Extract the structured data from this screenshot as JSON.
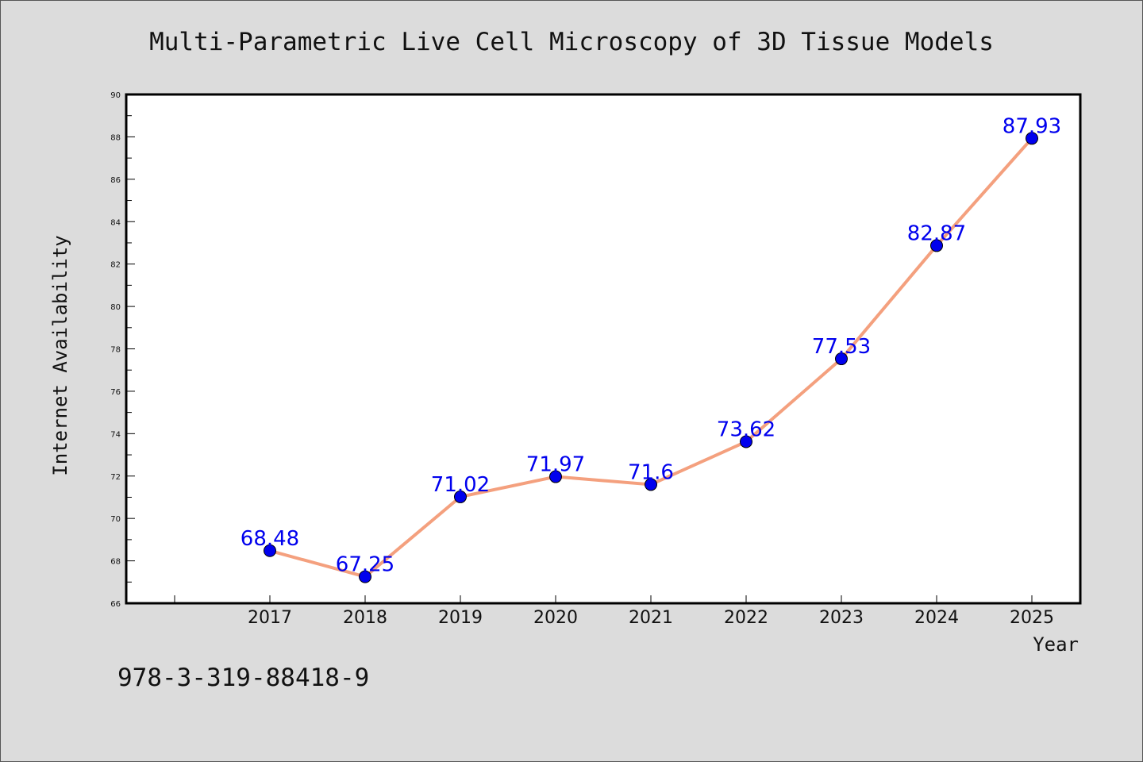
{
  "chart_data": {
    "type": "line",
    "title": "Multi-Parametric Live Cell Microscopy of 3D Tissue Models",
    "xlabel": "Year",
    "ylabel": "Internet Availability",
    "categories": [
      "2017",
      "2018",
      "2019",
      "2020",
      "2021",
      "2022",
      "2023",
      "2024",
      "2025"
    ],
    "series": [
      {
        "values": [
          68.48,
          67.25,
          71.02,
          71.97,
          71.6,
          73.62,
          77.53,
          82.87,
          87.93
        ],
        "labels": [
          "68.48",
          "67.25",
          "71.02",
          "71.97",
          "71.6",
          "73.62",
          "77.53",
          "82.87",
          "87.93"
        ]
      }
    ],
    "ylim": [
      66,
      90
    ],
    "yticks": [
      "66",
      "68",
      "70",
      "72",
      "74",
      "76",
      "78",
      "80",
      "82",
      "84",
      "86",
      "88",
      "90"
    ],
    "grid": false,
    "legend": "none",
    "colors": {
      "line": "#f4a07e",
      "marker": "#0000ee",
      "data_label": "#0000ee",
      "background": "#dcdcdc",
      "plot_background": "#ffffff"
    }
  },
  "footnote": "978-3-319-88418-9"
}
